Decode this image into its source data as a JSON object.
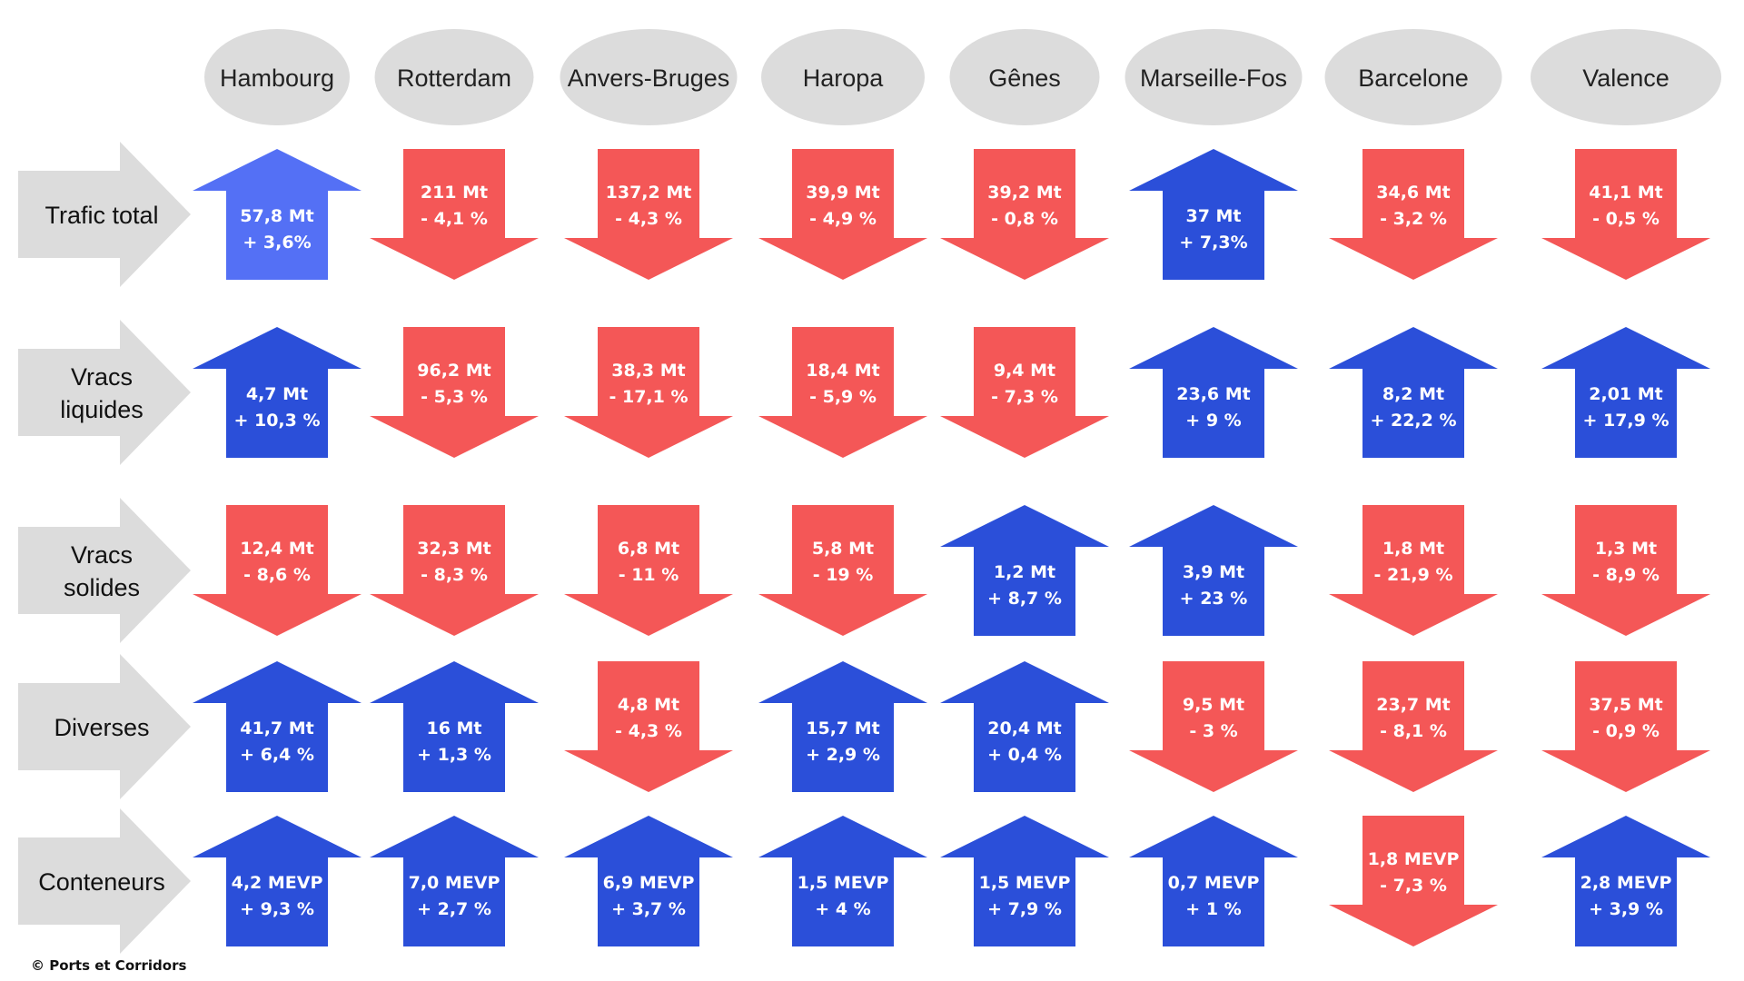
{
  "colors": {
    "up": "#2b4fd9",
    "up_highlight": "#5470f5",
    "down": "#f45757",
    "bubble": "#dcdcdc",
    "row_arrow": "#dcdcdc"
  },
  "ports": [
    "Hambourg",
    "Rotterdam",
    "Anvers-Bruges",
    "Haropa",
    "Gênes",
    "Marseille-Fos",
    "Barcelone",
    "Valence"
  ],
  "rows": [
    {
      "label": "Trafic total",
      "cells": [
        {
          "value": "57,8 Mt",
          "change": "+ 3,6%",
          "direction": "up",
          "highlight": true
        },
        {
          "value": "211 Mt",
          "change": "- 4,1 %",
          "direction": "down"
        },
        {
          "value": "137,2 Mt",
          "change": "- 4,3 %",
          "direction": "down"
        },
        {
          "value": "39,9 Mt",
          "change": "- 4,9 %",
          "direction": "down"
        },
        {
          "value": "39,2 Mt",
          "change": "- 0,8 %",
          "direction": "down"
        },
        {
          "value": "37 Mt",
          "change": "+ 7,3%",
          "direction": "up"
        },
        {
          "value": "34,6 Mt",
          "change": "- 3,2 %",
          "direction": "down"
        },
        {
          "value": "41,1 Mt",
          "change": "- 0,5 %",
          "direction": "down"
        }
      ]
    },
    {
      "label": "Vracs liquides",
      "cells": [
        {
          "value": "4,7 Mt",
          "change": "+ 10,3 %",
          "direction": "up"
        },
        {
          "value": "96,2 Mt",
          "change": "- 5,3 %",
          "direction": "down"
        },
        {
          "value": "38,3 Mt",
          "change": "- 17,1 %",
          "direction": "down"
        },
        {
          "value": "18,4 Mt",
          "change": "- 5,9 %",
          "direction": "down"
        },
        {
          "value": "9,4 Mt",
          "change": "- 7,3 %",
          "direction": "down"
        },
        {
          "value": "23,6 Mt",
          "change": "+ 9 %",
          "direction": "up"
        },
        {
          "value": "8,2 Mt",
          "change": "+ 22,2 %",
          "direction": "up"
        },
        {
          "value": "2,01 Mt",
          "change": "+ 17,9 %",
          "direction": "up"
        }
      ]
    },
    {
      "label": "Vracs solides",
      "cells": [
        {
          "value": "12,4 Mt",
          "change": "- 8,6 %",
          "direction": "down"
        },
        {
          "value": "32,3 Mt",
          "change": "- 8,3 %",
          "direction": "down"
        },
        {
          "value": "6,8 Mt",
          "change": "- 11 %",
          "direction": "down"
        },
        {
          "value": "5,8 Mt",
          "change": "- 19 %",
          "direction": "down"
        },
        {
          "value": "1,2 Mt",
          "change": "+ 8,7 %",
          "direction": "up"
        },
        {
          "value": "3,9 Mt",
          "change": "+ 23 %",
          "direction": "up"
        },
        {
          "value": "1,8 Mt",
          "change": "- 21,9 %",
          "direction": "down"
        },
        {
          "value": "1,3 Mt",
          "change": "- 8,9 %",
          "direction": "down"
        }
      ]
    },
    {
      "label": "Diverses",
      "cells": [
        {
          "value": "41,7 Mt",
          "change": "+ 6,4 %",
          "direction": "up"
        },
        {
          "value": "16 Mt",
          "change": "+ 1,3 %",
          "direction": "up"
        },
        {
          "value": "4,8 Mt",
          "change": "- 4,3 %",
          "direction": "down"
        },
        {
          "value": "15,7 Mt",
          "change": "+ 2,9 %",
          "direction": "up"
        },
        {
          "value": "20,4 Mt",
          "change": "+ 0,4 %",
          "direction": "up"
        },
        {
          "value": "9,5 Mt",
          "change": "- 3 %",
          "direction": "down"
        },
        {
          "value": "23,7 Mt",
          "change": "- 8,1 %",
          "direction": "down"
        },
        {
          "value": "37,5 Mt",
          "change": "- 0,9 %",
          "direction": "down"
        }
      ]
    },
    {
      "label": "Conteneurs",
      "cells": [
        {
          "value": "4,2 MEVP",
          "change": "+ 9,3 %",
          "direction": "up"
        },
        {
          "value": "7,0 MEVP",
          "change": "+ 2,7 %",
          "direction": "up"
        },
        {
          "value": "6,9 MEVP",
          "change": "+ 3,7 %",
          "direction": "up"
        },
        {
          "value": "1,5 MEVP",
          "change": "+ 4 %",
          "direction": "up"
        },
        {
          "value": "1,5 MEVP",
          "change": "+ 7,9 %",
          "direction": "up"
        },
        {
          "value": "0,7 MEVP",
          "change": "+ 1 %",
          "direction": "up"
        },
        {
          "value": "1,8 MEVP",
          "change": "- 7,3 %",
          "direction": "down"
        },
        {
          "value": "2,8 MEVP",
          "change": "+ 3,9 %",
          "direction": "up"
        }
      ]
    }
  ],
  "credit": "© Ports et Corridors"
}
